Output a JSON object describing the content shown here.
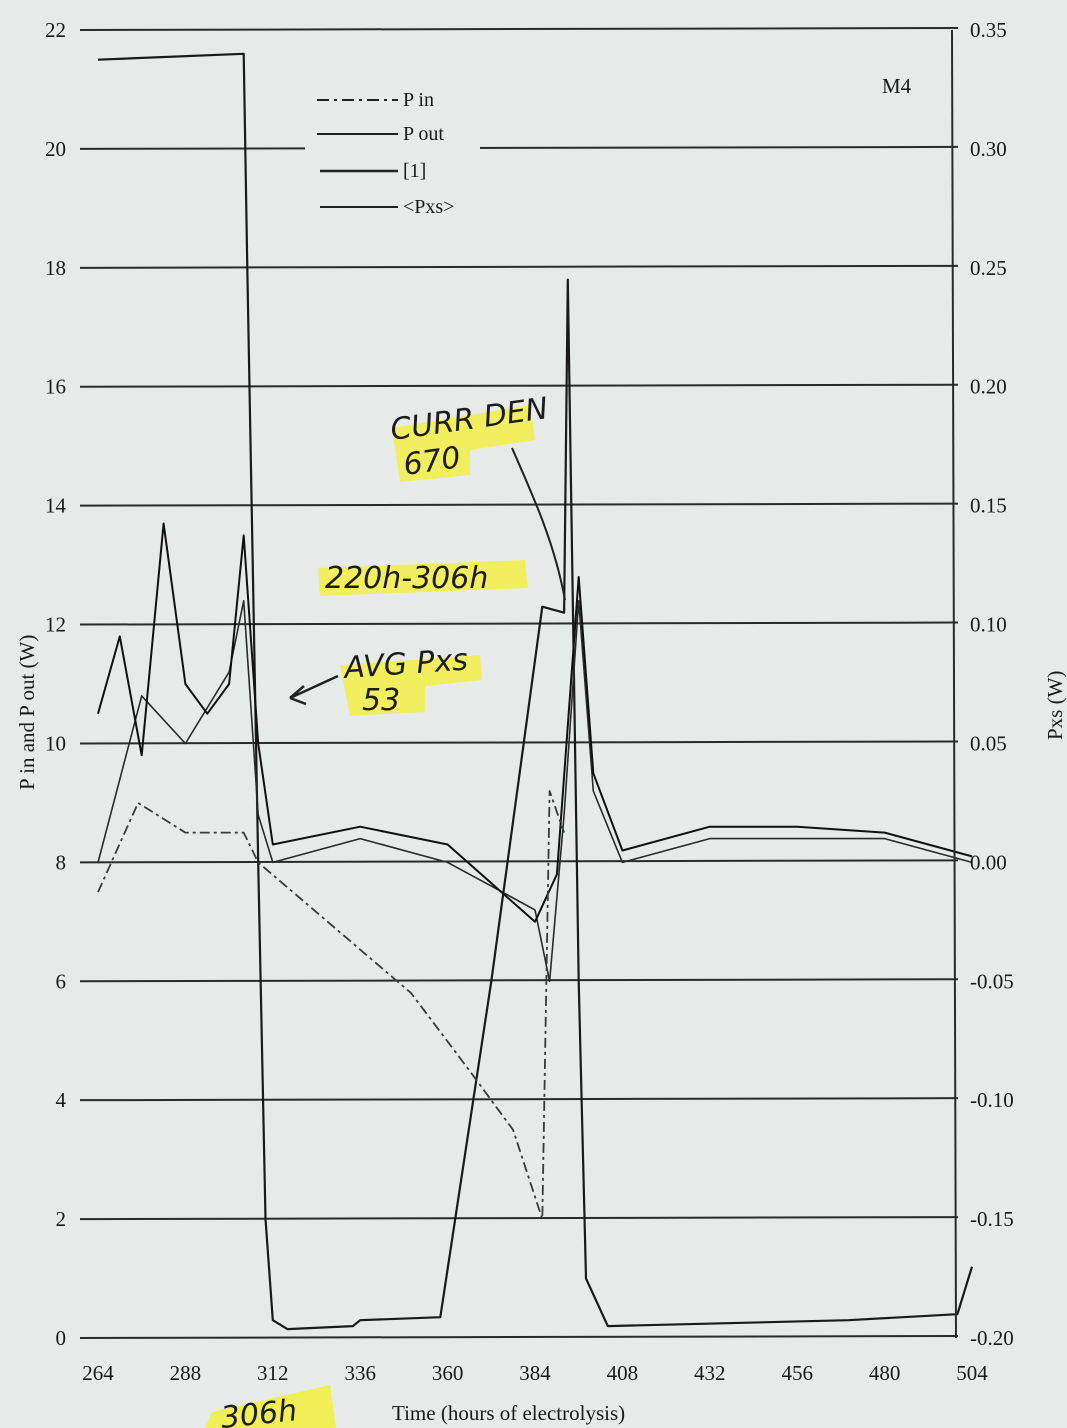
{
  "chart_data": {
    "type": "line",
    "panel_label": "M4",
    "xlabel": "Time (hours of electrolysis)",
    "ylabel_left": "P in and P out (W)",
    "ylabel_right": "Pxs (W)",
    "xlim": [
      264,
      504
    ],
    "x_ticks": [
      264,
      288,
      312,
      336,
      360,
      384,
      408,
      432,
      456,
      480,
      504
    ],
    "ylim_left": [
      0,
      22
    ],
    "y_left_ticks": [
      0,
      2,
      4,
      6,
      8,
      10,
      12,
      14,
      16,
      18,
      20,
      22
    ],
    "ylim_right": [
      -0.2,
      0.35
    ],
    "y_right_ticks": [
      "-0.20",
      "-0.15",
      "-0.10",
      "-0.05",
      "0.00",
      "0.05",
      "0.10",
      "0.15",
      "0.20",
      "0.25",
      "0.30",
      "0.35"
    ],
    "grid": "horizontal",
    "legend": {
      "position": "top-center",
      "entries": [
        "P in",
        "P out",
        "[1]",
        "<Pxs>"
      ]
    },
    "series": [
      {
        "name": "[1]",
        "axis": "left",
        "points": [
          [
            264,
            21.5
          ],
          [
            304,
            21.6
          ],
          [
            305,
            18.0
          ],
          [
            308,
            8.0
          ],
          [
            310,
            2.0
          ],
          [
            312,
            0.3
          ],
          [
            316,
            0.15
          ],
          [
            334,
            0.2
          ],
          [
            336,
            0.3
          ],
          [
            358,
            0.35
          ],
          [
            372,
            6.0
          ],
          [
            386,
            12.3
          ],
          [
            392,
            12.2
          ],
          [
            393,
            17.8
          ],
          [
            396,
            6.0
          ],
          [
            398,
            1.0
          ],
          [
            404,
            0.2
          ],
          [
            470,
            0.3
          ],
          [
            500,
            0.4
          ],
          [
            504,
            1.2
          ]
        ]
      },
      {
        "name": "<Pxs>",
        "axis": "right",
        "points": [
          [
            264,
            0.0
          ],
          [
            276,
            0.07
          ],
          [
            288,
            0.05
          ],
          [
            300,
            0.08
          ],
          [
            304,
            0.11
          ],
          [
            308,
            0.02
          ],
          [
            312,
            0.0
          ],
          [
            336,
            0.01
          ],
          [
            360,
            0.0
          ],
          [
            372,
            -0.01
          ],
          [
            384,
            -0.02
          ],
          [
            388,
            -0.05
          ],
          [
            392,
            0.02
          ],
          [
            396,
            0.11
          ],
          [
            400,
            0.03
          ],
          [
            408,
            0.0
          ],
          [
            432,
            0.01
          ],
          [
            456,
            0.01
          ],
          [
            480,
            0.01
          ],
          [
            504,
            0.0
          ]
        ]
      },
      {
        "name": "P out",
        "axis": "left",
        "points": [
          [
            264,
            10.5
          ],
          [
            270,
            11.8
          ],
          [
            276,
            9.8
          ],
          [
            282,
            13.7
          ],
          [
            288,
            11.0
          ],
          [
            294,
            10.5
          ],
          [
            300,
            11.0
          ],
          [
            304,
            13.5
          ],
          [
            308,
            10.0
          ],
          [
            312,
            8.3
          ],
          [
            336,
            8.6
          ],
          [
            360,
            8.3
          ],
          [
            384,
            7.0
          ],
          [
            390,
            7.8
          ],
          [
            396,
            12.8
          ],
          [
            400,
            9.5
          ],
          [
            408,
            8.2
          ],
          [
            432,
            8.6
          ],
          [
            456,
            8.6
          ],
          [
            480,
            8.5
          ],
          [
            504,
            8.1
          ]
        ]
      },
      {
        "name": "P in",
        "axis": "left",
        "points": [
          [
            264,
            7.5
          ],
          [
            275,
            9.0
          ],
          [
            288,
            8.5
          ],
          [
            304,
            8.5
          ],
          [
            308,
            8.0
          ],
          [
            350,
            5.8
          ],
          [
            366,
            4.5
          ],
          [
            378,
            3.5
          ],
          [
            386,
            2.0
          ],
          [
            388,
            9.2
          ],
          [
            392,
            8.5
          ]
        ]
      }
    ],
    "annotations": [
      "CURR DEN",
      "670",
      "220h-306h",
      "AVG Pxs",
      "53",
      "306h"
    ]
  }
}
